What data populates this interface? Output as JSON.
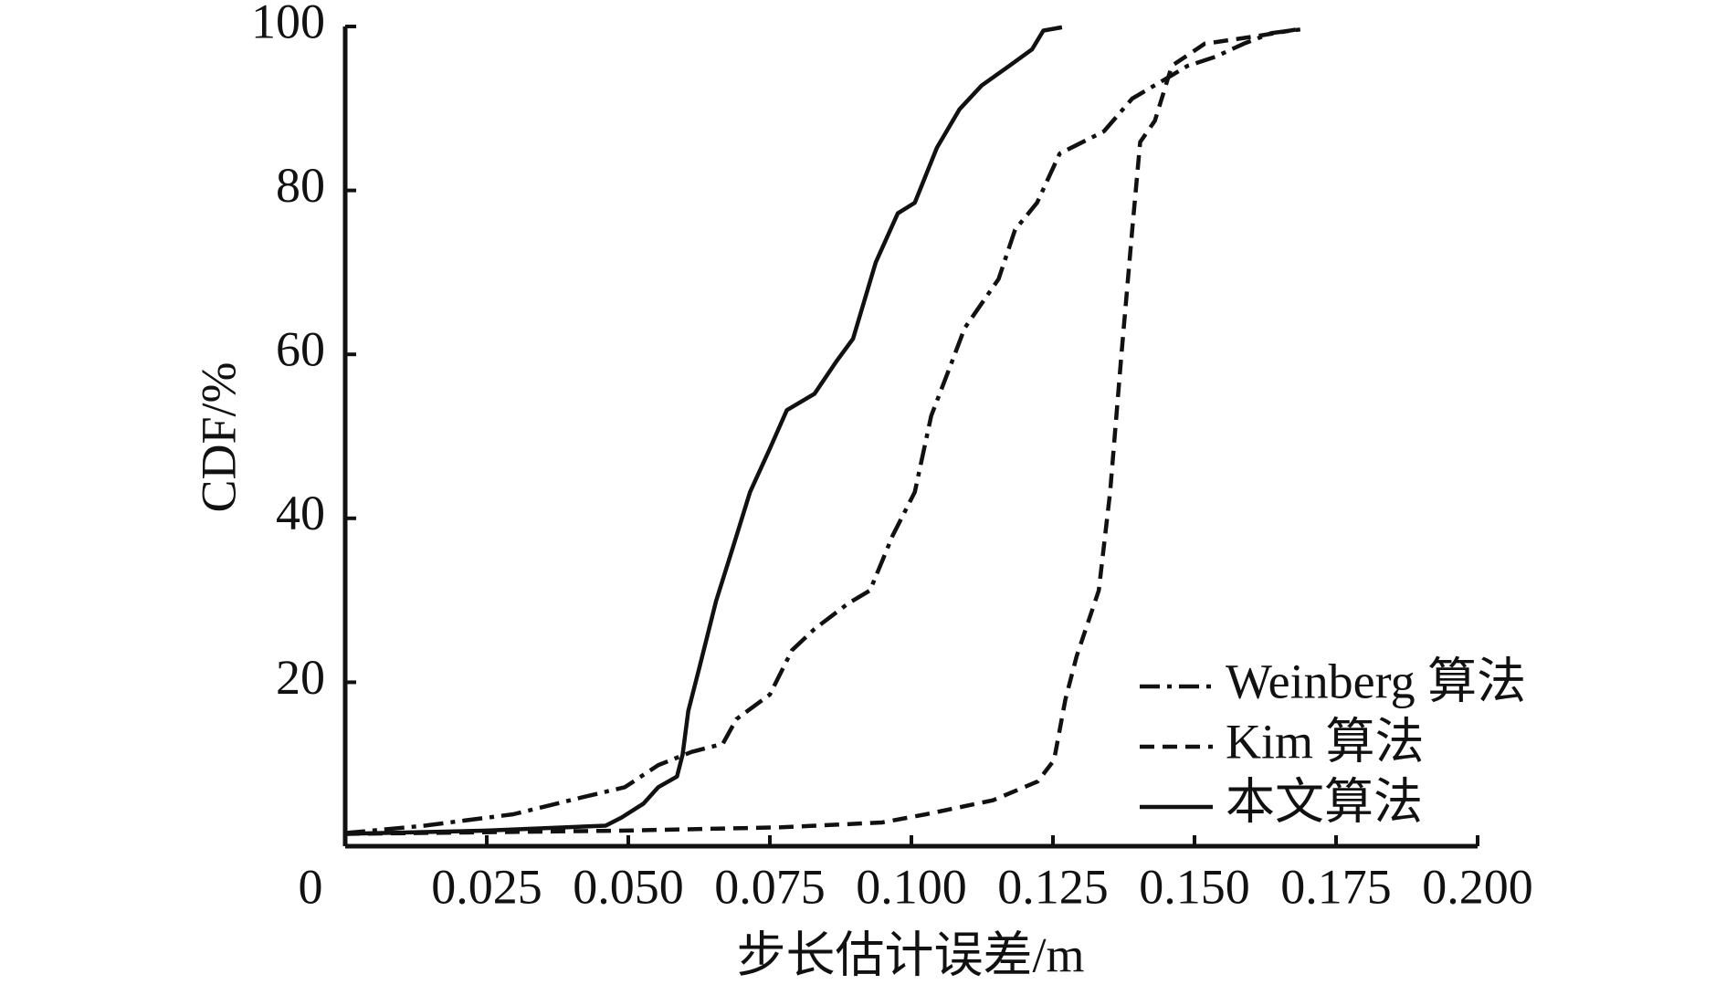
{
  "chart_data": {
    "type": "line",
    "xlabel": "步长估计误差/m",
    "ylabel": "CDF/%",
    "xlim": [
      0,
      0.2
    ],
    "ylim": [
      0,
      100
    ],
    "xticks": [
      0,
      0.025,
      {
        "value": 0.05,
        "label": "0.050"
      },
      0.075,
      {
        "value": 0.1,
        "label": "0.100"
      },
      0.125,
      {
        "value": 0.15,
        "label": "0.150"
      },
      0.175,
      {
        "value": 0.2,
        "label": "0.200"
      }
    ],
    "yticks": [
      20,
      40,
      60,
      80,
      100
    ],
    "legend": "lower right",
    "series": [
      {
        "name": "Weinberg 算法",
        "color": "#111111",
        "linestyle": "dashdot",
        "x": [
          0,
          0.014,
          0.0297,
          0.0415,
          0.0494,
          0.0553,
          0.0612,
          0.0667,
          0.0691,
          0.075,
          0.0789,
          0.0829,
          0.0888,
          0.0927,
          0.0967,
          0.1006,
          0.1035,
          0.1065,
          0.1094,
          0.1154,
          0.1183,
          0.1222,
          0.1262,
          0.134,
          0.139,
          0.1439,
          0.1488,
          0.1537,
          0.1587,
          0.1636,
          0.1695
        ],
        "values": [
          1.6,
          2.5,
          3.9,
          5.9,
          7.2,
          9.9,
          11.5,
          12.5,
          15.5,
          18.5,
          23.9,
          26.5,
          29.6,
          31.2,
          37.9,
          43.2,
          52.5,
          57.9,
          63.2,
          69.2,
          75.2,
          78.5,
          84.5,
          87.2,
          91.2,
          93.2,
          95.2,
          96.3,
          97.9,
          99.2,
          99.7
        ]
      },
      {
        "name": "Kim 算法",
        "color": "#111111",
        "linestyle": "dashed",
        "x": [
          0,
          0.0494,
          0.077,
          0.0948,
          0.1026,
          0.1144,
          0.1223,
          0.1252,
          0.1272,
          0.1292,
          0.1331,
          0.1351,
          0.137,
          0.139,
          0.1404,
          0.143,
          0.146,
          0.1518,
          0.1617,
          0.1686
        ],
        "values": [
          1.5,
          1.9,
          2.3,
          2.9,
          3.9,
          5.6,
          7.9,
          10.5,
          17.9,
          23.2,
          31.2,
          43.2,
          59.2,
          75.2,
          85.9,
          88.5,
          95.2,
          97.9,
          98.9,
          99.7
        ]
      },
      {
        "name": "本文算法",
        "color": "#111111",
        "linestyle": "solid",
        "x": [
          0,
          0.025,
          0.046,
          0.0488,
          0.0527,
          0.0553,
          0.0586,
          0.0596,
          0.0606,
          0.0626,
          0.0655,
          0.0685,
          0.0715,
          0.075,
          0.078,
          0.0829,
          0.0868,
          0.0897,
          0.0937,
          0.0976,
          0.1006,
          0.1045,
          0.1085,
          0.1124,
          0.1173,
          0.1213,
          0.1233,
          0.1266
        ],
        "values": [
          1.5,
          1.9,
          2.5,
          3.5,
          5.2,
          7.2,
          8.5,
          11.2,
          16.5,
          21.9,
          29.9,
          36.5,
          43.2,
          48.5,
          53.2,
          55.2,
          59.2,
          61.9,
          71.2,
          77.2,
          78.5,
          85.2,
          89.9,
          92.8,
          95.2,
          97.2,
          99.5,
          99.9
        ]
      }
    ]
  }
}
